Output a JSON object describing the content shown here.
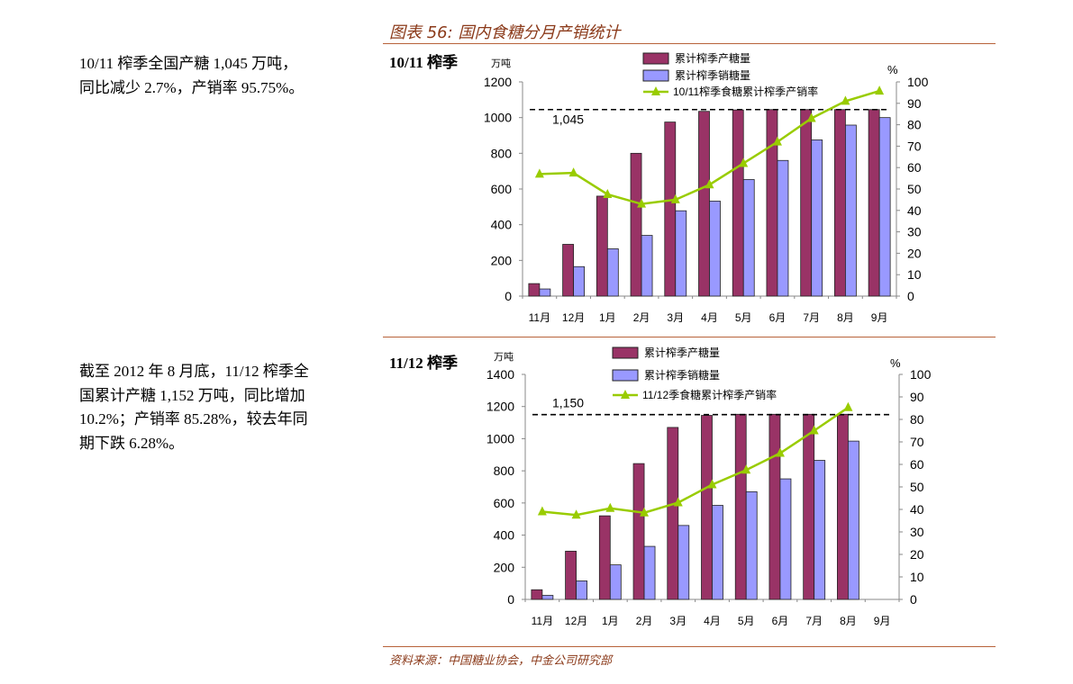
{
  "figure_title": "图表 56:  国内食糖分月产销统计",
  "left_text": {
    "p1": [
      "10/11 榨季全国产糖 1,045 万吨，",
      "同比减少 2.7%，产销率 95.75%。"
    ],
    "p2": [
      "截至 2012 年 8 月底，11/12 榨季全",
      "国累计产糖 1,152 万吨，同比增加",
      "10.2%；产销率 85.28%，较去年同",
      "期下跌 6.28%。"
    ]
  },
  "source": "资料来源：中国糖业协会，中金公司研究部",
  "colors": {
    "production": "#993366",
    "sales": "#9999ff",
    "rate": "#99cc00",
    "rule": "#b8623a"
  },
  "chart_data": [
    {
      "type": "bar",
      "season_label": "10/11 榨季",
      "categories": [
        "11月",
        "12月",
        "1月",
        "2月",
        "3月",
        "4月",
        "5月",
        "6月",
        "7月",
        "8月",
        "9月"
      ],
      "ylabel": "万吨",
      "y2label": "%",
      "ylim": [
        0,
        1200
      ],
      "yticks": [
        0,
        200,
        400,
        600,
        800,
        1000,
        1200
      ],
      "y2lim": [
        0,
        100
      ],
      "y2ticks": [
        0,
        10,
        20,
        30,
        40,
        50,
        60,
        70,
        80,
        90,
        100
      ],
      "reference_line": {
        "value": 1045,
        "label": "1,045"
      },
      "series": [
        {
          "name": "累计榨季产糖量",
          "kind": "bar",
          "axis": "left",
          "values": [
            70,
            290,
            560,
            800,
            975,
            1035,
            1043,
            1045,
            1045,
            1045,
            1045
          ]
        },
        {
          "name": "累计榨季销糖量",
          "kind": "bar",
          "axis": "left",
          "values": [
            40,
            165,
            265,
            340,
            478,
            532,
            653,
            760,
            875,
            958,
            1000
          ]
        },
        {
          "name": "10/11榨季食糖累计榨季产销率",
          "kind": "line",
          "axis": "right",
          "values": [
            57,
            57.5,
            47.5,
            43,
            45,
            52,
            62,
            72,
            83,
            91,
            95.75
          ]
        }
      ]
    },
    {
      "type": "bar",
      "season_label": "11/12 榨季",
      "categories": [
        "11月",
        "12月",
        "1月",
        "2月",
        "3月",
        "4月",
        "5月",
        "6月",
        "7月",
        "8月",
        "9月"
      ],
      "ylabel": "万吨",
      "y2label": "%",
      "ylim": [
        0,
        1400
      ],
      "yticks": [
        0,
        200,
        400,
        600,
        800,
        1000,
        1200,
        1400
      ],
      "y2lim": [
        0,
        100
      ],
      "y2ticks": [
        0,
        10,
        20,
        30,
        40,
        50,
        60,
        70,
        80,
        90,
        100
      ],
      "reference_line": {
        "value": 1150,
        "label": "1,150"
      },
      "series": [
        {
          "name": "累计榨季产糖量",
          "kind": "bar",
          "axis": "left",
          "values": [
            60,
            300,
            520,
            845,
            1070,
            1145,
            1152,
            1152,
            1152,
            1152,
            null
          ]
        },
        {
          "name": "累计榨季销糖量",
          "kind": "bar",
          "axis": "left",
          "values": [
            25,
            115,
            215,
            330,
            460,
            585,
            670,
            750,
            865,
            985,
            null
          ]
        },
        {
          "name": "11/12季食糖累计榨季产销率",
          "kind": "line",
          "axis": "right",
          "values": [
            39,
            37.5,
            40.5,
            38.5,
            43,
            51,
            57.5,
            65,
            75,
            85.28,
            null
          ]
        }
      ]
    }
  ]
}
